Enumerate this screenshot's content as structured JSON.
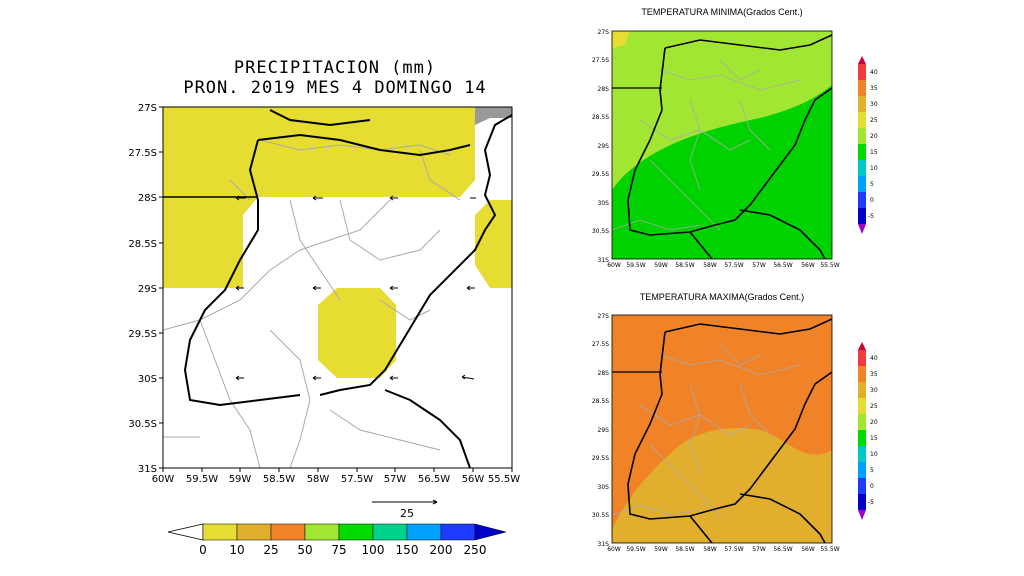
{
  "precip": {
    "title_line1": "PRECIPITACION (mm)",
    "title_line2": "PRON. 2019 MES 4 DOMINGO 14",
    "lat_labels": [
      "27S",
      "27.5S",
      "28S",
      "28.5S",
      "29S",
      "29.5S",
      "30S",
      "30.5S",
      "31S"
    ],
    "lon_labels": [
      "60W",
      "59.5W",
      "59W",
      "58.5W",
      "58W",
      "57.5W",
      "57W",
      "56.5W",
      "56W",
      "55.5W"
    ],
    "wind_ref_label": "25",
    "colorbar": {
      "labels": [
        "0",
        "10",
        "25",
        "50",
        "75",
        "100",
        "150",
        "200",
        "250"
      ],
      "colors": [
        "#e6dc32",
        "#e1af2d",
        "#f08228",
        "#a0e632",
        "#00dc00",
        "#00d28c",
        "#00a0ff",
        "#1e3cff",
        "#0000c8"
      ]
    }
  },
  "tmin": {
    "title": "TEMPERATURA MINIMA(Grados Cent.)",
    "lat_labels": [
      "27S",
      "27.5S",
      "28S",
      "28.5S",
      "29S",
      "29.5S",
      "30S",
      "30.5S",
      "31S"
    ],
    "lon_labels": [
      "60W",
      "59.5W",
      "59W",
      "58.5W",
      "58W",
      "57.5W",
      "57W",
      "56.5W",
      "56W",
      "55.5W"
    ]
  },
  "tmax": {
    "title": "TEMPERATURA MAXIMA(Grados Cent.)",
    "lat_labels": [
      "27S",
      "27.5S",
      "28S",
      "28.5S",
      "29S",
      "29.5S",
      "30S",
      "30.5S",
      "31S"
    ],
    "lon_labels": [
      "60W",
      "59.5W",
      "59W",
      "58.5W",
      "58W",
      "57.5W",
      "57W",
      "56.5W",
      "56W",
      "55.5W"
    ]
  },
  "temp_colorbar": {
    "labels": [
      "40",
      "35",
      "30",
      "25",
      "20",
      "15",
      "10",
      "5",
      "0",
      "-5"
    ],
    "colors": [
      "#c8003c",
      "#f03c3c",
      "#f08228",
      "#e1af2d",
      "#e6dc32",
      "#a0e632",
      "#00dc00",
      "#00c8c8",
      "#00a0ff",
      "#1e3cff",
      "#0000c8",
      "#a000c8"
    ]
  },
  "colors": {
    "precip_yellow": "#e6dc32",
    "tmin_light": "#a0e632",
    "tmin_dark": "#00d200",
    "tmax_orange": "#f08228",
    "tmax_gold": "#e1af2d"
  }
}
